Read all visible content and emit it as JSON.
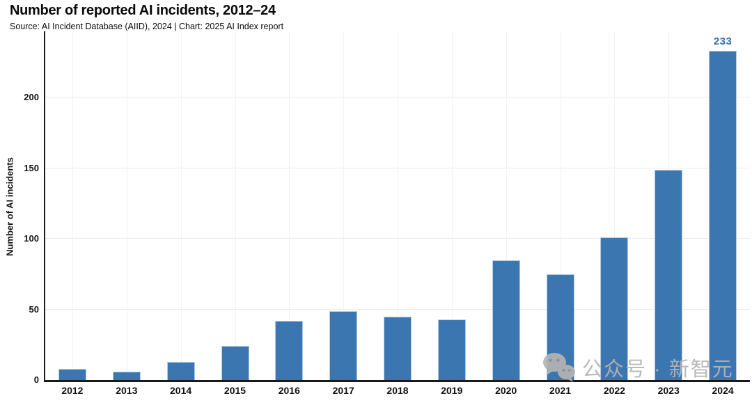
{
  "chart_data": {
    "type": "bar",
    "title": "Number of reported AI incidents, 2012–24",
    "subtitle": "Source: AI Incident Database (AIID), 2024 | Chart: 2025 AI Index report",
    "xlabel": "",
    "ylabel": "Number of AI incidents",
    "categories": [
      "2012",
      "2013",
      "2014",
      "2015",
      "2016",
      "2017",
      "2018",
      "2019",
      "2020",
      "2021",
      "2022",
      "2023",
      "2024"
    ],
    "values": [
      8,
      6,
      13,
      24,
      42,
      49,
      45,
      43,
      85,
      75,
      101,
      149,
      233
    ],
    "yticks": [
      0,
      50,
      100,
      150,
      200
    ],
    "ylim": [
      0,
      247
    ],
    "grid": "very light horizontal lines at y ticks and vertical lines at each category",
    "legend": "none",
    "colors": {
      "bar_fill": "#3b76b1",
      "bar_edge": "#b5cae0",
      "annotation_text": "#2e6fad",
      "axis_line": "#1a1a1a",
      "gridline": "#ececec"
    },
    "annotations": [
      {
        "category": "2024",
        "text": "233"
      }
    ]
  },
  "watermark": {
    "icon": "wechat-icon",
    "text": "公众号 · 新智元",
    "color": "#b4b4b4"
  }
}
